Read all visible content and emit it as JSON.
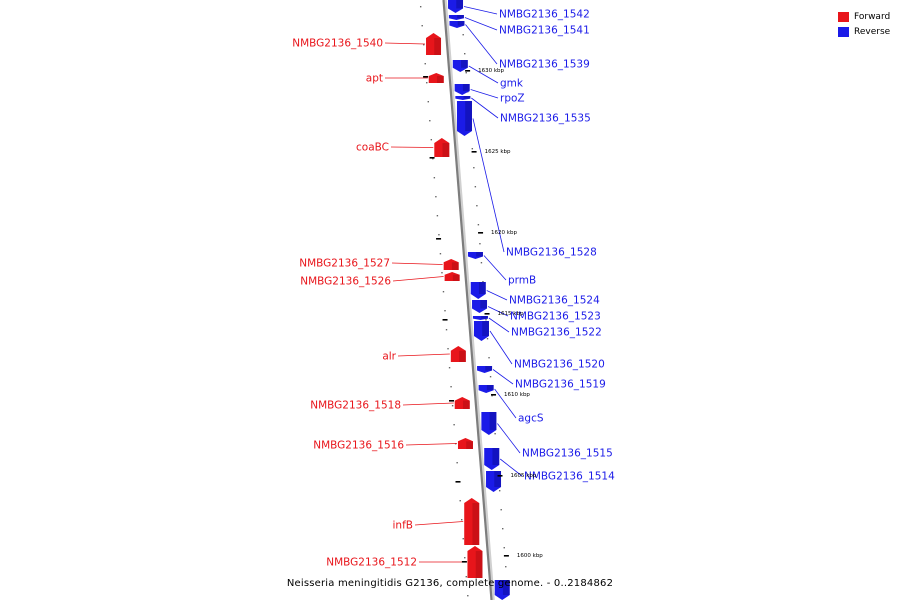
{
  "caption": "Neisseria meningitidis G2136, complete genome. - 0..2184862",
  "legend": {
    "forward_label": "Forward",
    "reverse_label": "Reverse",
    "forward_color": "#e8151b",
    "reverse_color": "#1b1be8"
  },
  "chart_data": {
    "type": "linear-genome-map",
    "strands": [
      "Forward",
      "Reverse"
    ],
    "scale_labels": [
      "1630 kbp",
      "1625 kbp",
      "1620 kbp",
      "1615 kbp",
      "1610 kbp",
      "1605 kbp",
      "1600 kbp"
    ],
    "forward_genes": [
      "NMBG2136_1540",
      "apt",
      "coaBC",
      "NMBG2136_1527",
      "NMBG2136_1526",
      "alr",
      "NMBG2136_1518",
      "NMBG2136_1516",
      "infB",
      "NMBG2136_1512"
    ],
    "reverse_genes": [
      "NMBG2136_1542",
      "NMBG2136_1541",
      "NMBG2136_1539",
      "gmk",
      "rpoZ",
      "NMBG2136_1535",
      "NMBG2136_1528",
      "prmB",
      "NMBG2136_1524",
      "NMBG2136_1523",
      "NMBG2136_1522",
      "NMBG2136_1520",
      "NMBG2136_1519",
      "agcS",
      "NMBG2136_1515",
      "NMBG2136_1514"
    ]
  }
}
